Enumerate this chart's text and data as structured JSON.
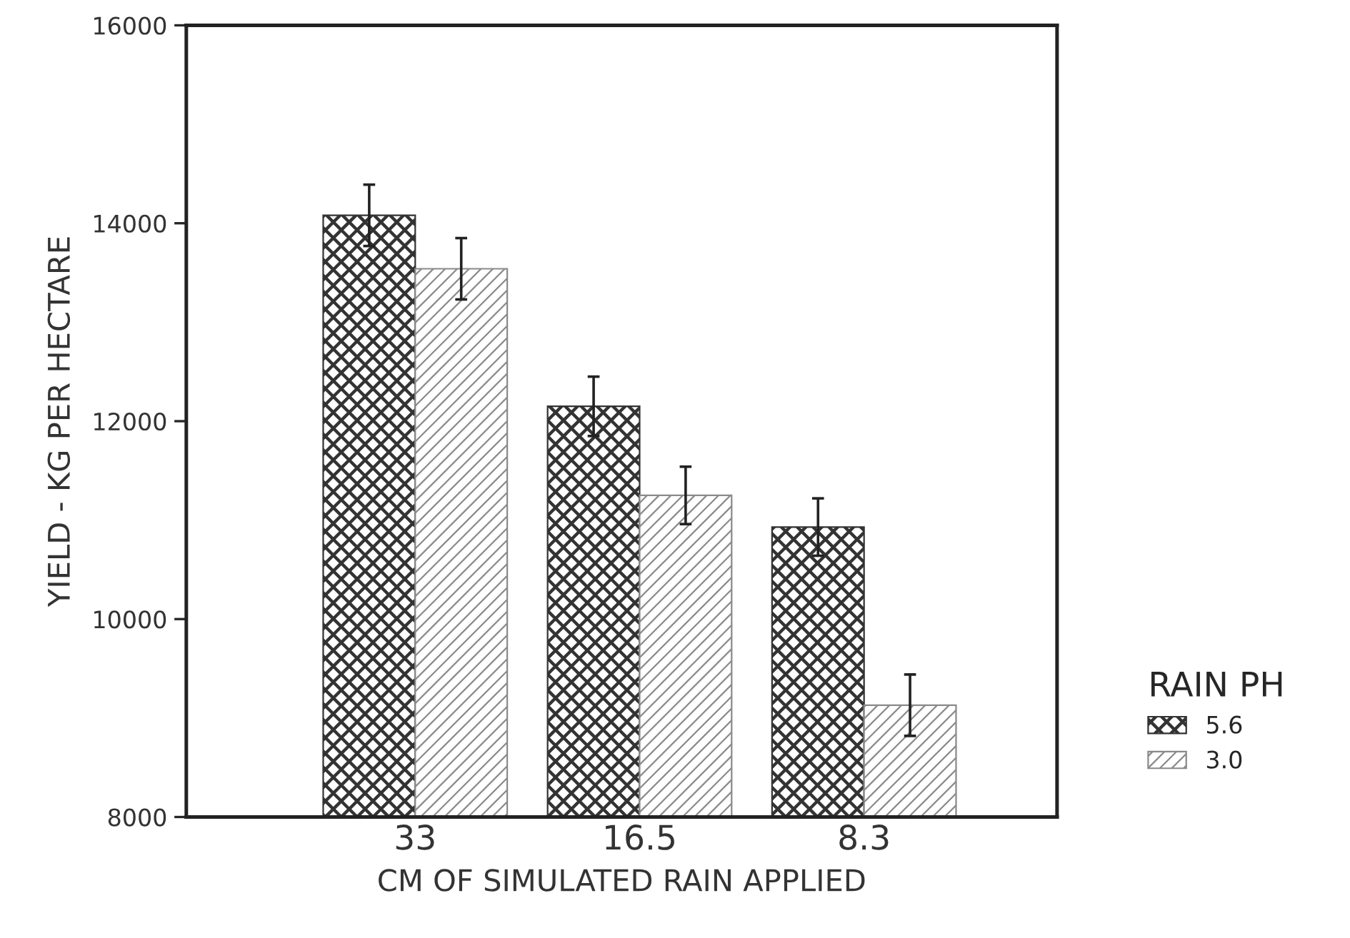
{
  "chart_data": {
    "type": "bar",
    "xlabel": "CM OF SIMULATED RAIN APPLIED",
    "ylabel": "YIELD - KG PER HECTARE",
    "legend_title": "RAIN PH",
    "categories": [
      "33",
      "16.5",
      "8.3"
    ],
    "series": [
      {
        "name": "5.6",
        "color": "#333333",
        "values": [
          14080,
          12150,
          10930
        ],
        "errors": [
          310,
          300,
          290
        ]
      },
      {
        "name": "3.0",
        "color": "#8a8a8a",
        "values": [
          13540,
          11250,
          9130
        ],
        "errors": [
          310,
          290,
          310
        ]
      }
    ],
    "ylim": [
      8000,
      16000
    ],
    "yticks": [
      8000,
      10000,
      12000,
      14000,
      16000
    ],
    "grid": false,
    "legend": "right"
  }
}
